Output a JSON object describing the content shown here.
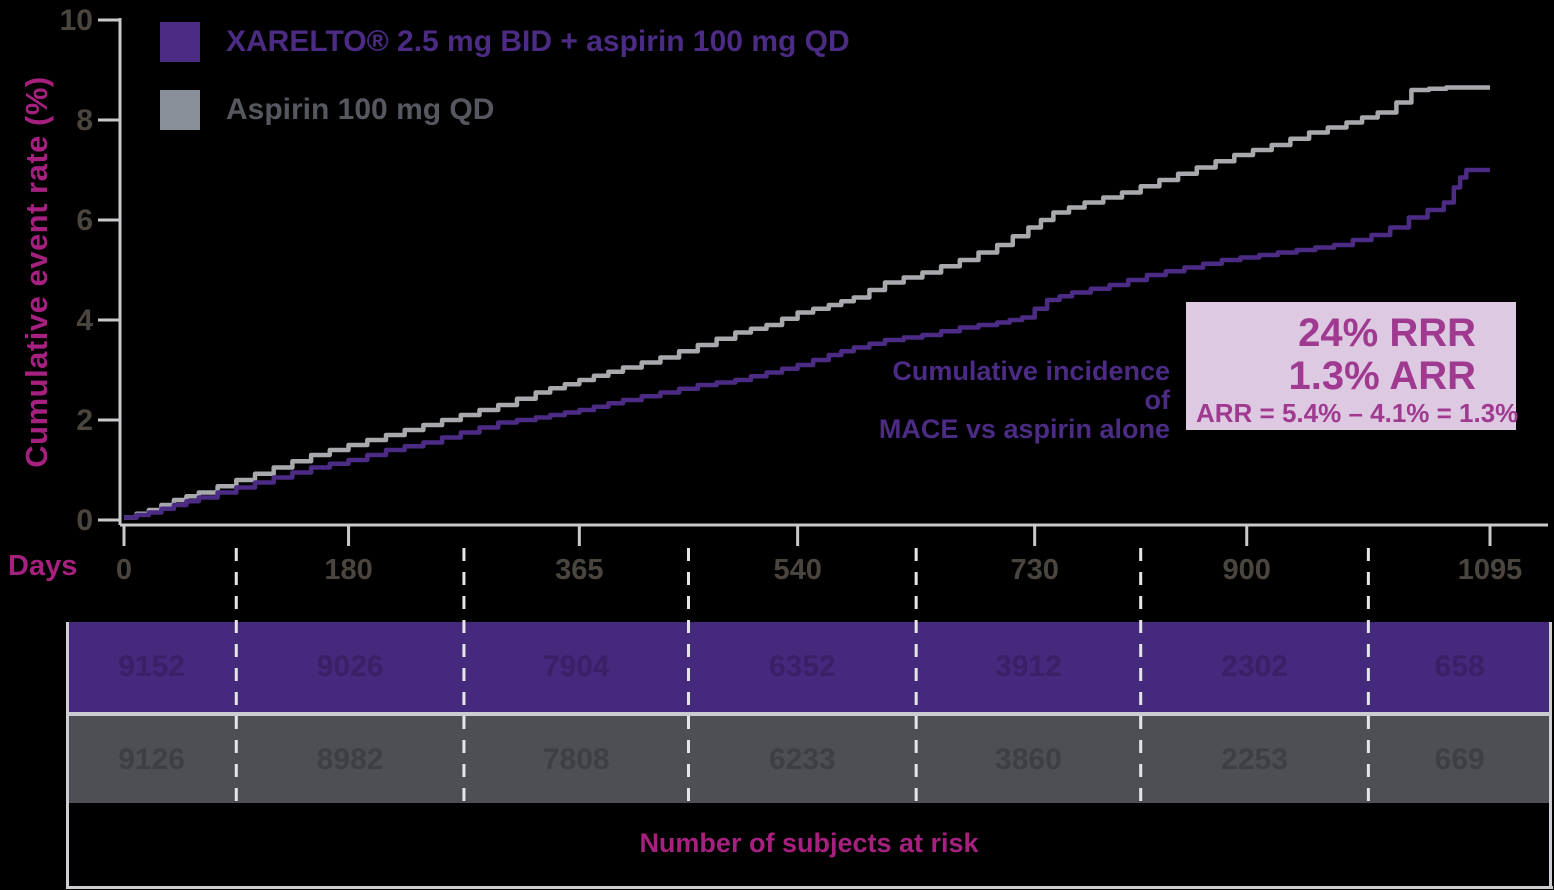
{
  "y_axis_label": "Cumulative event rate (%)",
  "x_axis_label": "Days",
  "legend": {
    "items": [
      {
        "label": "XARELTO® 2.5 mg BID + aspirin 100 mg QD",
        "color": "#4b2b84",
        "text_color": "#4b2b84"
      },
      {
        "label": "Aspirin 100 mg QD",
        "color": "#8a9099",
        "text_color": "#55585e"
      }
    ]
  },
  "annotation": {
    "line1": "Cumulative incidence of",
    "line2": "MACE vs aspirin alone"
  },
  "stat_box": {
    "line1": "24% RRR",
    "line2": "1.3% ARR",
    "line3": "ARR = 5.4% – 4.1% = 1.3%",
    "bg_color": "#ddc9e1",
    "text_color": "#a03a90"
  },
  "risk_table": {
    "caption": "Number of subjects at risk",
    "rows": [
      {
        "name": "XARELTO 2.5 mg BID + aspirin 100 mg QD",
        "bg": "#45297c",
        "text_color": "#392067",
        "values": [
          "9152",
          "9026",
          "7904",
          "6352",
          "3912",
          "2302",
          "658"
        ]
      },
      {
        "name": "Aspirin 100 mg QD",
        "bg": "#4e4f55",
        "text_color": "#3e3f45",
        "values": [
          "9126",
          "8982",
          "7808",
          "6233",
          "3860",
          "2253",
          "669"
        ]
      }
    ]
  },
  "colors": {
    "background": "#000000",
    "magenta_label": "#a6217f",
    "tick_label": "#4b4540",
    "axis_line": "#c7c9cb",
    "divider_dash": "#e4e6e8",
    "xarelto_purple": "#4b2b84",
    "aspirin_gray": "#a7a9ac"
  },
  "chart_data": {
    "type": "line",
    "step": true,
    "title": "",
    "xlabel": "Days",
    "ylabel": "Cumulative event rate (%)",
    "xlim": [
      0,
      1095
    ],
    "ylim": [
      0,
      10
    ],
    "x_ticks": [
      0,
      180,
      365,
      540,
      730,
      900,
      1095
    ],
    "y_ticks": [
      0,
      2,
      4,
      6,
      8,
      10
    ],
    "grid": false,
    "legend_position": "top-left",
    "series": [
      {
        "name": "Aspirin 100 mg QD",
        "color": "#a7a9ac",
        "x": [
          0,
          20,
          40,
          60,
          90,
          120,
          150,
          180,
          210,
          240,
          270,
          300,
          330,
          365,
          400,
          430,
          460,
          490,
          515,
          540,
          565,
          585,
          610,
          640,
          670,
          700,
          725,
          745,
          770,
          800,
          830,
          860,
          890,
          920,
          950,
          980,
          1005,
          1020,
          1032,
          1060,
          1095
        ],
        "y": [
          0.05,
          0.2,
          0.4,
          0.55,
          0.8,
          1.05,
          1.3,
          1.5,
          1.7,
          1.9,
          2.1,
          2.3,
          2.55,
          2.8,
          3.05,
          3.25,
          3.5,
          3.75,
          3.9,
          4.15,
          4.3,
          4.45,
          4.75,
          4.95,
          5.2,
          5.5,
          5.85,
          6.15,
          6.35,
          6.55,
          6.8,
          7.05,
          7.3,
          7.5,
          7.75,
          7.95,
          8.15,
          8.35,
          8.6,
          8.65,
          8.65
        ]
      },
      {
        "name": "XARELTO 2.5 mg BID + aspirin 100 mg QD",
        "color": "#4b2b84",
        "x": [
          0,
          20,
          40,
          60,
          90,
          120,
          150,
          180,
          210,
          240,
          270,
          300,
          330,
          365,
          400,
          430,
          460,
          490,
          515,
          540,
          565,
          585,
          610,
          640,
          670,
          700,
          720,
          740,
          760,
          790,
          820,
          850,
          880,
          910,
          940,
          970,
          1000,
          1015,
          1030,
          1045,
          1058,
          1066,
          1071,
          1076,
          1095
        ],
        "y": [
          0.05,
          0.15,
          0.3,
          0.45,
          0.65,
          0.85,
          1.05,
          1.2,
          1.4,
          1.55,
          1.75,
          1.95,
          2.05,
          2.2,
          2.4,
          2.55,
          2.7,
          2.8,
          2.95,
          3.1,
          3.3,
          3.45,
          3.6,
          3.7,
          3.85,
          3.95,
          4.05,
          4.4,
          4.55,
          4.7,
          4.9,
          5.05,
          5.2,
          5.3,
          5.4,
          5.5,
          5.7,
          5.85,
          6.05,
          6.2,
          6.35,
          6.65,
          6.85,
          7.0,
          7.0
        ]
      }
    ]
  }
}
